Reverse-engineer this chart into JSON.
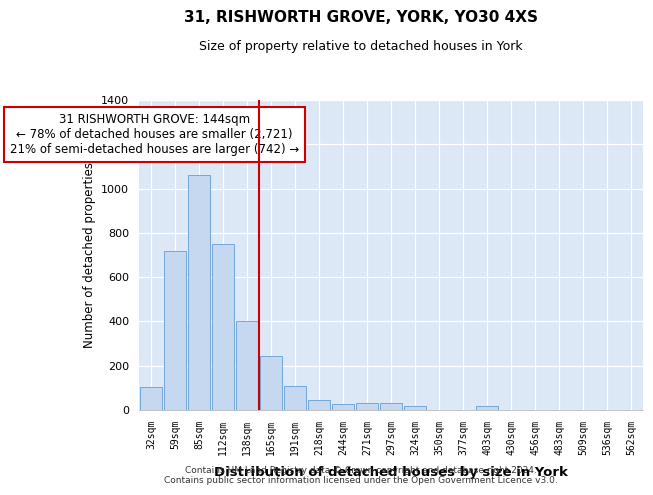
{
  "title": "31, RISHWORTH GROVE, YORK, YO30 4XS",
  "subtitle": "Size of property relative to detached houses in York",
  "xlabel": "Distribution of detached houses by size in York",
  "ylabel": "Number of detached properties",
  "categories": [
    "32sqm",
    "59sqm",
    "85sqm",
    "112sqm",
    "138sqm",
    "165sqm",
    "191sqm",
    "218sqm",
    "244sqm",
    "271sqm",
    "297sqm",
    "324sqm",
    "350sqm",
    "377sqm",
    "403sqm",
    "430sqm",
    "456sqm",
    "483sqm",
    "509sqm",
    "536sqm",
    "562sqm"
  ],
  "values": [
    105,
    720,
    1060,
    748,
    400,
    245,
    110,
    47,
    25,
    30,
    30,
    20,
    0,
    0,
    20,
    0,
    0,
    0,
    0,
    0,
    0
  ],
  "bar_color": "#c5d8f0",
  "bar_edge_color": "#6fa8d8",
  "vline_x": 4.5,
  "vline_color": "#cc0000",
  "annotation_text": "31 RISHWORTH GROVE: 144sqm\n← 78% of detached houses are smaller (2,721)\n21% of semi-detached houses are larger (742) →",
  "annotation_box_color": "#ffffff",
  "annotation_box_edge": "#cc0000",
  "ylim": [
    0,
    1400
  ],
  "yticks": [
    0,
    200,
    400,
    600,
    800,
    1000,
    1200,
    1400
  ],
  "footer": "Contains HM Land Registry data © Crown copyright and database right 2024.\nContains public sector information licensed under the Open Government Licence v3.0.",
  "bg_color": "#ffffff",
  "plot_bg_color": "#dce8f5"
}
